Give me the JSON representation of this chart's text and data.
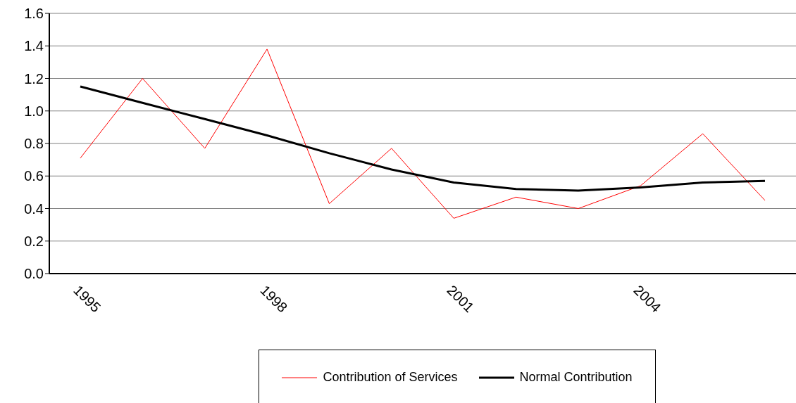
{
  "chart_data": {
    "type": "line",
    "categories": [
      "1995",
      null,
      null,
      "1998",
      null,
      null,
      "2001",
      null,
      null,
      "2004",
      null,
      null
    ],
    "series": [
      {
        "name": "Contribution of Services",
        "color": "#ff0000",
        "values": [
          0.71,
          1.2,
          0.77,
          1.38,
          0.43,
          0.77,
          0.34,
          0.47,
          0.4,
          0.54,
          0.86,
          0.45
        ]
      },
      {
        "name": "Normal Contribution",
        "color": "#000000",
        "values": [
          1.15,
          1.05,
          0.95,
          0.85,
          0.74,
          0.64,
          0.56,
          0.52,
          0.51,
          0.53,
          0.56,
          0.57
        ]
      }
    ],
    "ylim": [
      0,
      1.6
    ],
    "yticks": [
      {
        "value": 0,
        "label": "0.0"
      },
      {
        "value": 0.2,
        "label": "0.2"
      },
      {
        "value": 0.4,
        "label": "0.4"
      },
      {
        "value": 0.6,
        "label": "0.6"
      },
      {
        "value": 0.8,
        "label": "0.8"
      },
      {
        "value": 1,
        "label": "1.0"
      },
      {
        "value": 1.2,
        "label": "1.2"
      },
      {
        "value": 1.4,
        "label": "1.4"
      },
      {
        "value": 1.6,
        "label": "1.6"
      }
    ],
    "grid": "y",
    "legend": "bottom",
    "marker": "none",
    "line_style": "solid"
  }
}
